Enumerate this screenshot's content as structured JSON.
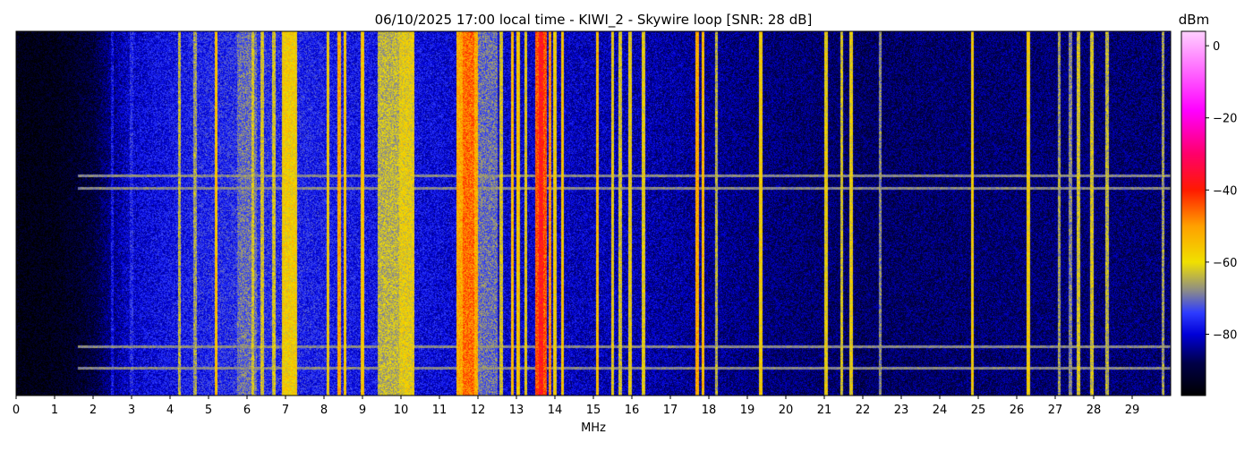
{
  "chart_data": {
    "type": "heatmap",
    "title": "06/10/2025 17:00 local time - KIWI_2 - Skywire loop [SNR: 28 dB]",
    "xlabel": "MHz",
    "ylabel": "",
    "xlim": [
      0,
      30
    ],
    "x_ticks": [
      "0",
      "1",
      "2",
      "3",
      "4",
      "5",
      "6",
      "7",
      "8",
      "9",
      "10",
      "11",
      "12",
      "13",
      "14",
      "15",
      "16",
      "17",
      "18",
      "19",
      "20",
      "21",
      "22",
      "23",
      "24",
      "25",
      "26",
      "27",
      "28",
      "29"
    ],
    "colorbar": {
      "label": "dBm",
      "range": [
        -97,
        4
      ],
      "ticks": [
        "0",
        "−20",
        "−40",
        "−60",
        "−80"
      ],
      "tick_values": [
        0,
        -20,
        -40,
        -60,
        -80
      ],
      "colormap": [
        {
          "v": -97,
          "c": "#000000"
        },
        {
          "v": -88,
          "c": "#000048"
        },
        {
          "v": -80,
          "c": "#0000d8"
        },
        {
          "v": -74,
          "c": "#2e3cff"
        },
        {
          "v": -68,
          "c": "#8a8a8a"
        },
        {
          "v": -60,
          "c": "#f0e000"
        },
        {
          "v": -50,
          "c": "#ffa000"
        },
        {
          "v": -40,
          "c": "#ff1a00"
        },
        {
          "v": -30,
          "c": "#ff006a"
        },
        {
          "v": -18,
          "c": "#ff00ff"
        },
        {
          "v": 4,
          "c": "#ffd0ff"
        }
      ]
    },
    "noise_floor_dbm": [
      {
        "f": 0.0,
        "db": -95
      },
      {
        "f": 1.0,
        "db": -94
      },
      {
        "f": 2.0,
        "db": -90
      },
      {
        "f": 2.5,
        "db": -84
      },
      {
        "f": 3.0,
        "db": -80
      },
      {
        "f": 5.0,
        "db": -76
      },
      {
        "f": 6.0,
        "db": -75
      },
      {
        "f": 8.0,
        "db": -77
      },
      {
        "f": 12.0,
        "db": -80
      },
      {
        "f": 16.0,
        "db": -82
      },
      {
        "f": 19.0,
        "db": -85
      },
      {
        "f": 22.0,
        "db": -87
      },
      {
        "f": 26.0,
        "db": -86
      },
      {
        "f": 30.0,
        "db": -86
      }
    ],
    "bands": [
      {
        "f0": 5.75,
        "f1": 6.25,
        "db": -70
      },
      {
        "f0": 6.9,
        "f1": 7.3,
        "db": -58
      },
      {
        "f0": 9.4,
        "f1": 9.95,
        "db": -64
      },
      {
        "f0": 9.95,
        "f1": 10.35,
        "db": -60
      },
      {
        "f0": 11.45,
        "f1": 12.0,
        "db": -52
      },
      {
        "f0": 11.6,
        "f1": 11.9,
        "db": -46
      },
      {
        "f0": 12.0,
        "f1": 12.5,
        "db": -70
      },
      {
        "f0": 13.5,
        "f1": 13.8,
        "db": -44
      },
      {
        "f0": 13.58,
        "f1": 13.7,
        "db": -38
      }
    ],
    "signals": [
      {
        "f": 2.5,
        "db": -78
      },
      {
        "f": 3.0,
        "db": -76
      },
      {
        "f": 4.25,
        "db": -64
      },
      {
        "f": 4.65,
        "db": -66
      },
      {
        "f": 5.2,
        "db": -55
      },
      {
        "f": 6.15,
        "db": -62
      },
      {
        "f": 6.4,
        "db": -62
      },
      {
        "f": 6.7,
        "db": -62
      },
      {
        "f": 8.1,
        "db": -58
      },
      {
        "f": 8.4,
        "db": -52
      },
      {
        "f": 8.55,
        "db": -56
      },
      {
        "f": 9.0,
        "db": -56
      },
      {
        "f": 12.6,
        "db": -62
      },
      {
        "f": 12.9,
        "db": -54
      },
      {
        "f": 13.05,
        "db": -56
      },
      {
        "f": 13.25,
        "db": -60
      },
      {
        "f": 13.87,
        "db": -50
      },
      {
        "f": 14.0,
        "db": -58
      },
      {
        "f": 14.2,
        "db": -56
      },
      {
        "f": 15.1,
        "db": -54
      },
      {
        "f": 15.5,
        "db": -60
      },
      {
        "f": 15.7,
        "db": -62
      },
      {
        "f": 15.95,
        "db": -60
      },
      {
        "f": 16.3,
        "db": -60
      },
      {
        "f": 17.7,
        "db": -52
      },
      {
        "f": 17.85,
        "db": -54
      },
      {
        "f": 18.2,
        "db": -64
      },
      {
        "f": 19.35,
        "db": -58
      },
      {
        "f": 21.05,
        "db": -60
      },
      {
        "f": 21.45,
        "db": -62
      },
      {
        "f": 21.7,
        "db": -60
      },
      {
        "f": 22.45,
        "db": -68
      },
      {
        "f": 24.85,
        "db": -58
      },
      {
        "f": 26.3,
        "db": -58
      },
      {
        "f": 27.1,
        "db": -66
      },
      {
        "f": 27.4,
        "db": -68
      },
      {
        "f": 27.6,
        "db": -62
      },
      {
        "f": 27.95,
        "db": -62
      },
      {
        "f": 28.35,
        "db": -64
      },
      {
        "f": 29.8,
        "db": -66
      }
    ],
    "interference_rows_fraction": [
      0.395,
      0.43,
      0.865,
      0.925
    ],
    "interference_span_mhz": [
      1.6,
      30.0
    ]
  }
}
